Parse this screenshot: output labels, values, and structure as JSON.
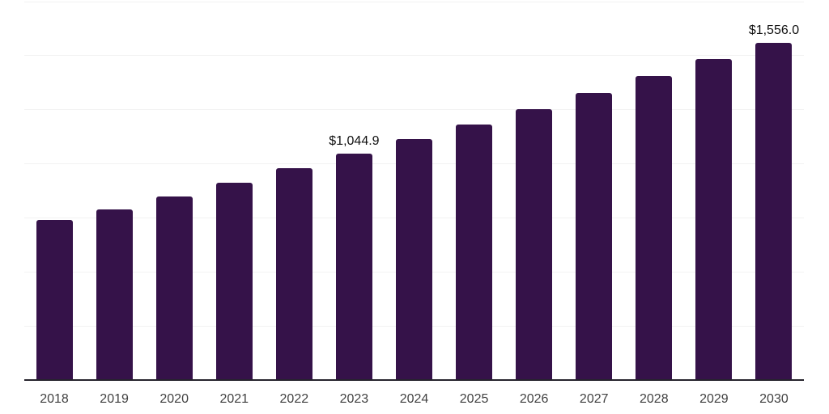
{
  "chart_data": {
    "type": "bar",
    "title": "",
    "xlabel": "",
    "ylabel": "",
    "categories": [
      "2018",
      "2019",
      "2020",
      "2021",
      "2022",
      "2023",
      "2024",
      "2025",
      "2026",
      "2027",
      "2028",
      "2029",
      "2030"
    ],
    "values": [
      738,
      787,
      846,
      912,
      978,
      1044.9,
      1112,
      1180,
      1252,
      1327,
      1404,
      1482,
      1556.0
    ],
    "data_labels": [
      {
        "category": "2023",
        "text": "$1,044.9"
      },
      {
        "category": "2030",
        "text": "$1,556.0"
      }
    ],
    "ylim": [
      0,
      1750
    ],
    "gridline_step": 250,
    "grid": "horizontal-only",
    "legend": "none",
    "y_axis_tick_labels": "none",
    "colors": {
      "bar": "#351249",
      "axis_line": "#26242c",
      "tick_label": "#414141",
      "data_label": "#101010",
      "gridline": "#f2f2f2",
      "background": "#ffffff"
    }
  }
}
